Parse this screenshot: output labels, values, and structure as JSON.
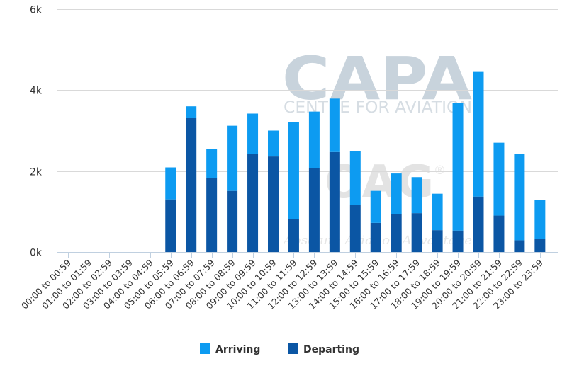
{
  "watermark": {
    "brand": "CAPA",
    "brand_sub": "CENTRE FOR AVIATION",
    "oag": "OAG",
    "oag_mark": "®",
    "oag_tag": "Absolute Aviation Advantage"
  },
  "chart_data": {
    "type": "bar",
    "stacked": true,
    "categories": [
      "00:00 to 00:59",
      "01:00 to 01:59",
      "02:00 to 02:59",
      "03:00 to 03:59",
      "04:00 to 04:59",
      "05:00 to 05:59",
      "06:00 to 06:59",
      "07:00 to 07:59",
      "08:00 to 08:59",
      "09:00 to 09:59",
      "10:00 to 10:59",
      "11:00 to 11:59",
      "12:00 to 12:59",
      "13:00 to 13:59",
      "14:00 to 14:59",
      "15:00 to 15:59",
      "16:00 to 16:59",
      "17:00 to 17:59",
      "18:00 to 18:59",
      "19:00 to 19:59",
      "20:00 to 20:59",
      "21:00 to 21:59",
      "22:00 to 22:59",
      "23:00 to 23:59"
    ],
    "series": [
      {
        "name": "Departing",
        "color": "#0b56a4",
        "values": [
          0,
          0,
          0,
          0,
          0,
          1300,
          3310,
          1820,
          1510,
          2420,
          2360,
          820,
          2080,
          2470,
          1160,
          720,
          940,
          960,
          540,
          530,
          1370,
          900,
          290,
          320
        ]
      },
      {
        "name": "Arriving",
        "color": "#0d9bf1",
        "values": [
          0,
          0,
          0,
          0,
          0,
          790,
          290,
          730,
          1610,
          1000,
          640,
          2390,
          1390,
          1320,
          1330,
          790,
          1000,
          890,
          900,
          3150,
          3080,
          1800,
          2130,
          960
        ]
      }
    ],
    "legend_order": [
      "Arriving",
      "Departing"
    ],
    "ylim": [
      0,
      6000
    ],
    "yticks": [
      0,
      2000,
      4000,
      6000
    ],
    "ytick_labels": [
      "0k",
      "2k",
      "4k",
      "6k"
    ],
    "grid": true,
    "legend_position": "bottom"
  }
}
